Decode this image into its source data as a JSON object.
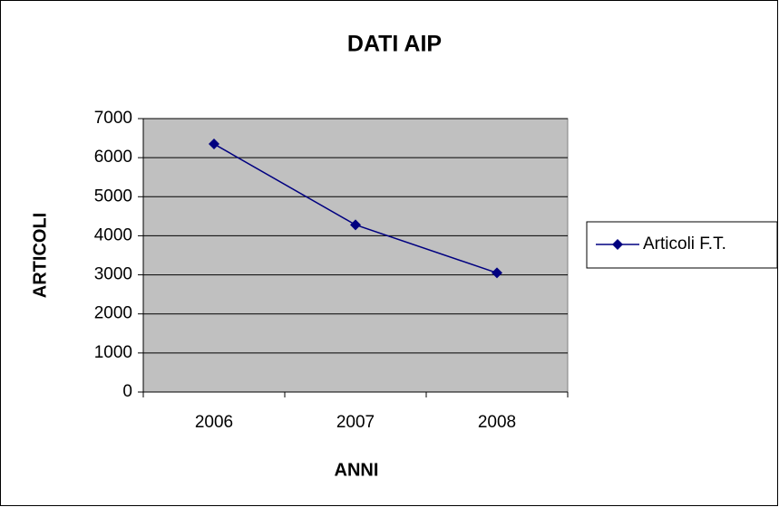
{
  "chart_data": {
    "type": "line",
    "title": "DATI AIP",
    "x_label": "ANNI",
    "y_label": "ARTICOLI",
    "categories": [
      "2006",
      "2007",
      "2008"
    ],
    "series": [
      {
        "name": "Articoli F.T.",
        "color": "#000080",
        "values": [
          6350,
          4280,
          3050
        ]
      }
    ],
    "ylim": [
      0,
      7000
    ],
    "yticks": [
      0,
      1000,
      2000,
      3000,
      4000,
      5000,
      6000,
      7000
    ],
    "grid": true,
    "legend": "right",
    "plot_background": "#c0c0c0"
  }
}
